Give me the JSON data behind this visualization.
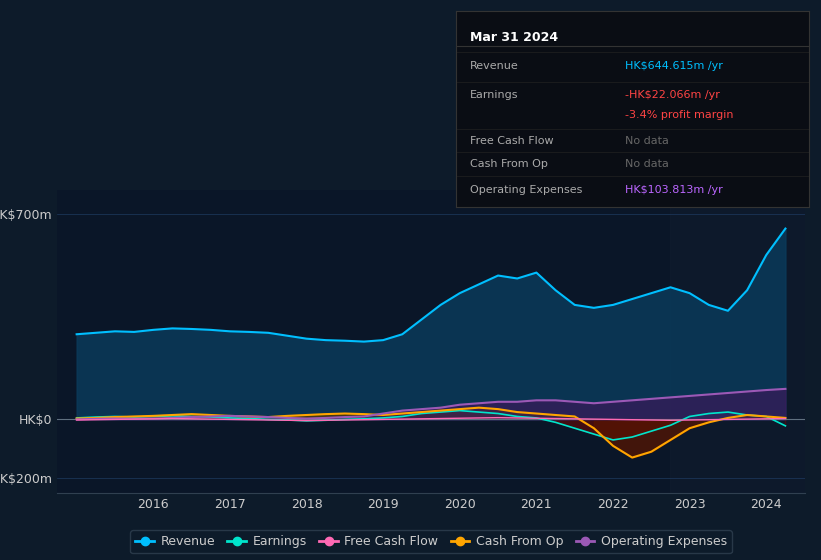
{
  "bg_color": "#0d1b2a",
  "plot_bg_color": "#0a1628",
  "grid_color": "#1e3a5f",
  "text_color": "#cccccc",
  "xlim_start": 2014.75,
  "xlim_end": 2024.5,
  "ylim": [
    -250,
    780
  ],
  "x_ticks": [
    2016,
    2017,
    2018,
    2019,
    2020,
    2021,
    2022,
    2023,
    2024
  ],
  "revenue_color": "#00bfff",
  "revenue_fill_color": "#0a3a5a",
  "earnings_color": "#00e5cc",
  "earnings_fill_neg_color": "#5a0a0a",
  "cashflow_color": "#ff69b4",
  "cashop_color": "#ffa500",
  "opex_color": "#9b59b6",
  "opex_fill_color": "#3a1a5a",
  "legend_items": [
    {
      "label": "Revenue",
      "color": "#00bfff"
    },
    {
      "label": "Earnings",
      "color": "#00e5cc"
    },
    {
      "label": "Free Cash Flow",
      "color": "#ff69b4"
    },
    {
      "label": "Cash From Op",
      "color": "#ffa500"
    },
    {
      "label": "Operating Expenses",
      "color": "#9b59b6"
    }
  ],
  "info_box": {
    "bg": "#0a0d14",
    "border": "#333333",
    "title": "Mar 31 2024",
    "rows": [
      {
        "label": "Revenue",
        "value": "HK$644.615m /yr",
        "value_color": "#00bfff"
      },
      {
        "label": "Earnings",
        "value": "-HK$22.066m /yr",
        "value_color": "#ff4444"
      },
      {
        "label": "",
        "value": "-3.4% profit margin",
        "value_color": "#ff4444"
      },
      {
        "label": "Free Cash Flow",
        "value": "No data",
        "value_color": "#666666"
      },
      {
        "label": "Cash From Op",
        "value": "No data",
        "value_color": "#666666"
      },
      {
        "label": "Operating Expenses",
        "value": "HK$103.813m /yr",
        "value_color": "#bb66ff"
      }
    ]
  },
  "revenue_x": [
    2015.0,
    2015.25,
    2015.5,
    2015.75,
    2016.0,
    2016.25,
    2016.5,
    2016.75,
    2017.0,
    2017.25,
    2017.5,
    2017.75,
    2018.0,
    2018.25,
    2018.5,
    2018.75,
    2019.0,
    2019.25,
    2019.5,
    2019.75,
    2020.0,
    2020.25,
    2020.5,
    2020.75,
    2021.0,
    2021.25,
    2021.5,
    2021.75,
    2022.0,
    2022.25,
    2022.5,
    2022.75,
    2023.0,
    2023.25,
    2023.5,
    2023.75,
    2024.0,
    2024.25
  ],
  "revenue_y": [
    290,
    295,
    300,
    298,
    305,
    310,
    308,
    305,
    300,
    298,
    295,
    285,
    275,
    270,
    268,
    265,
    270,
    290,
    340,
    390,
    430,
    460,
    490,
    480,
    500,
    440,
    390,
    380,
    390,
    410,
    430,
    450,
    430,
    390,
    370,
    440,
    560,
    650
  ],
  "earnings_x": [
    2015.0,
    2015.25,
    2015.5,
    2015.75,
    2016.0,
    2016.25,
    2016.5,
    2016.75,
    2017.0,
    2017.25,
    2017.5,
    2017.75,
    2018.0,
    2018.25,
    2018.5,
    2018.75,
    2019.0,
    2019.25,
    2019.5,
    2019.75,
    2020.0,
    2020.25,
    2020.5,
    2020.75,
    2021.0,
    2021.25,
    2021.5,
    2021.75,
    2022.0,
    2022.25,
    2022.5,
    2022.75,
    2023.0,
    2023.25,
    2023.5,
    2023.75,
    2024.0,
    2024.25
  ],
  "earnings_y": [
    5,
    8,
    10,
    8,
    10,
    12,
    10,
    8,
    5,
    3,
    0,
    -2,
    -5,
    -3,
    0,
    2,
    5,
    10,
    20,
    25,
    30,
    25,
    20,
    10,
    5,
    -10,
    -30,
    -50,
    -70,
    -60,
    -40,
    -20,
    10,
    20,
    25,
    15,
    10,
    -22
  ],
  "cashflow_x": [
    2015.0,
    2015.25,
    2015.5,
    2015.75,
    2016.0,
    2016.25,
    2016.5,
    2016.75,
    2017.0,
    2017.25,
    2017.5,
    2017.75,
    2018.0,
    2018.25,
    2018.5,
    2018.75,
    2019.0,
    2019.25,
    2019.5,
    2019.75,
    2020.0,
    2020.25,
    2020.5,
    2020.75,
    2021.0,
    2021.25,
    2021.5,
    2021.75,
    2022.0,
    2022.25,
    2022.5,
    2022.75,
    2023.0,
    2023.25,
    2023.5,
    2023.75,
    2024.0,
    2024.25
  ],
  "cashflow_y": [
    -2,
    -1,
    0,
    1,
    2,
    3,
    2,
    1,
    0,
    -1,
    -2,
    -3,
    -4,
    -3,
    -2,
    -1,
    0,
    1,
    2,
    3,
    4,
    5,
    6,
    5,
    4,
    3,
    2,
    1,
    0,
    -1,
    -2,
    -3,
    -2,
    -1,
    0,
    1,
    2,
    3
  ],
  "cashop_x": [
    2015.0,
    2015.25,
    2015.5,
    2015.75,
    2016.0,
    2016.25,
    2016.5,
    2016.75,
    2017.0,
    2017.25,
    2017.5,
    2017.75,
    2018.0,
    2018.25,
    2018.5,
    2018.75,
    2019.0,
    2019.25,
    2019.5,
    2019.75,
    2020.0,
    2020.25,
    2020.5,
    2020.75,
    2021.0,
    2021.25,
    2021.5,
    2021.75,
    2022.0,
    2022.25,
    2022.5,
    2022.75,
    2023.0,
    2023.25,
    2023.5,
    2023.75,
    2024.0,
    2024.25
  ],
  "cashop_y": [
    3,
    5,
    8,
    10,
    12,
    15,
    18,
    15,
    12,
    10,
    8,
    12,
    15,
    18,
    20,
    18,
    15,
    20,
    25,
    30,
    35,
    40,
    35,
    25,
    20,
    15,
    10,
    -30,
    -90,
    -130,
    -110,
    -70,
    -30,
    -10,
    5,
    15,
    10,
    5
  ],
  "opex_x": [
    2015.0,
    2015.25,
    2015.5,
    2015.75,
    2016.0,
    2016.25,
    2016.5,
    2016.75,
    2017.0,
    2017.25,
    2017.5,
    2017.75,
    2018.0,
    2018.25,
    2018.5,
    2018.75,
    2019.0,
    2019.25,
    2019.5,
    2019.75,
    2020.0,
    2020.25,
    2020.5,
    2020.75,
    2021.0,
    2021.25,
    2021.5,
    2021.75,
    2022.0,
    2022.25,
    2022.5,
    2022.75,
    2023.0,
    2023.25,
    2023.5,
    2023.75,
    2024.0,
    2024.25
  ],
  "opex_y": [
    0,
    2,
    3,
    2,
    3,
    5,
    8,
    10,
    12,
    10,
    8,
    5,
    3,
    5,
    8,
    10,
    20,
    30,
    35,
    40,
    50,
    55,
    60,
    60,
    65,
    65,
    60,
    55,
    60,
    65,
    70,
    75,
    80,
    85,
    90,
    95,
    100,
    104
  ]
}
